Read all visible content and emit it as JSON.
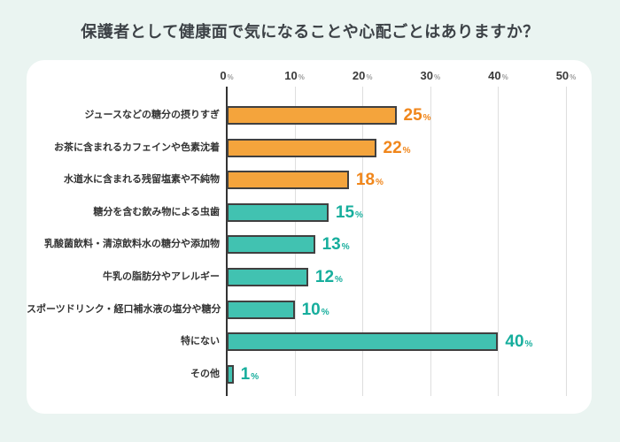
{
  "title": "保護者として健康面で気になることや心配ごとはありますか？",
  "chart_data": {
    "type": "bar",
    "orientation": "horizontal",
    "title": "保護者として健康面で気になることや心配ごとはありますか？",
    "categories": [
      "ジュースなどの糖分の摂りすぎ",
      "お茶に含まれるカフェインや色素沈着",
      "水道水に含まれる残留塩素や不純物",
      "糖分を含む飲み物による虫歯",
      "乳酸菌飲料・清涼飲料水の糖分や添加物",
      "牛乳の脂肪分やアレルギー",
      "スポーツドリンク・経口補水液の塩分や糖分",
      "特にない",
      "その他"
    ],
    "values": [
      25,
      22,
      18,
      15,
      13,
      12,
      10,
      40,
      1
    ],
    "unit": "%",
    "xlim": [
      0,
      50
    ],
    "axis_ticks": [
      "0",
      "10",
      "20",
      "30",
      "40",
      "50"
    ],
    "grid": true,
    "legend": "none",
    "bar_color_keys": [
      "orange",
      "orange",
      "orange",
      "teal",
      "teal",
      "teal",
      "teal",
      "teal",
      "teal"
    ],
    "colors": {
      "orange": "#F4A43C",
      "teal": "#41C2B1",
      "orange_label": "#F0861B",
      "teal_label": "#17AE9D",
      "bar_border": "#404040",
      "background": "#EAF4F1",
      "card": "#FFFFFF",
      "grid": "#DEDEDE",
      "axis": "#333333",
      "title_text": "#3D4247"
    }
  }
}
